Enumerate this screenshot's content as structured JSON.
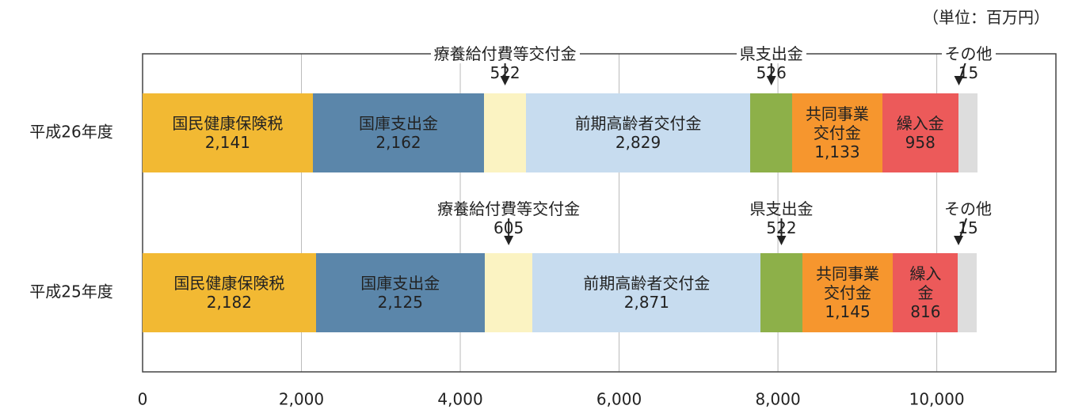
{
  "chart_data": {
    "type": "stacked-barh",
    "unit_label": "（単位：百万円）",
    "categories": [
      "平成26年度",
      "平成25年度"
    ],
    "series": [
      {
        "name": "国民健康保険税",
        "color": "#f2b933",
        "values": [
          2141,
          2182
        ],
        "value_labels": [
          "2,141",
          "2,182"
        ]
      },
      {
        "name": "国庫支出金",
        "color": "#5b86aa",
        "values": [
          2162,
          2125
        ],
        "value_labels": [
          "2,162",
          "2,125"
        ]
      },
      {
        "name": "療養給付費等交付金",
        "color": "#fbf3c2",
        "values": [
          522,
          605
        ]
      },
      {
        "name": "前期高齢者交付金",
        "color": "#c7dcef",
        "values": [
          2829,
          2871
        ],
        "value_labels": [
          "2,829",
          "2,871"
        ]
      },
      {
        "name": "県支出金",
        "color": "#8db049",
        "values": [
          526,
          522
        ]
      },
      {
        "name": "共同事業交付金",
        "color": "#f6962e",
        "values": [
          1133,
          1145
        ],
        "value_labels": [
          "1,133",
          "1,145"
        ]
      },
      {
        "name": "繰入金",
        "color": "#ec5a5a",
        "values": [
          958,
          816
        ]
      },
      {
        "name": "その他",
        "color": "#dddddd",
        "values": [
          15,
          15
        ]
      }
    ],
    "xlim": [
      0,
      11500
    ],
    "xticks": [
      0,
      {
        "value": 2000,
        "label": "2,000"
      },
      {
        "value": 4000,
        "label": "4,000"
      },
      {
        "value": 6000,
        "label": "6,000"
      },
      {
        "value": 8000,
        "label": "8,000"
      },
      {
        "value": 10000,
        "label": "10,000"
      }
    ],
    "grid": true
  }
}
